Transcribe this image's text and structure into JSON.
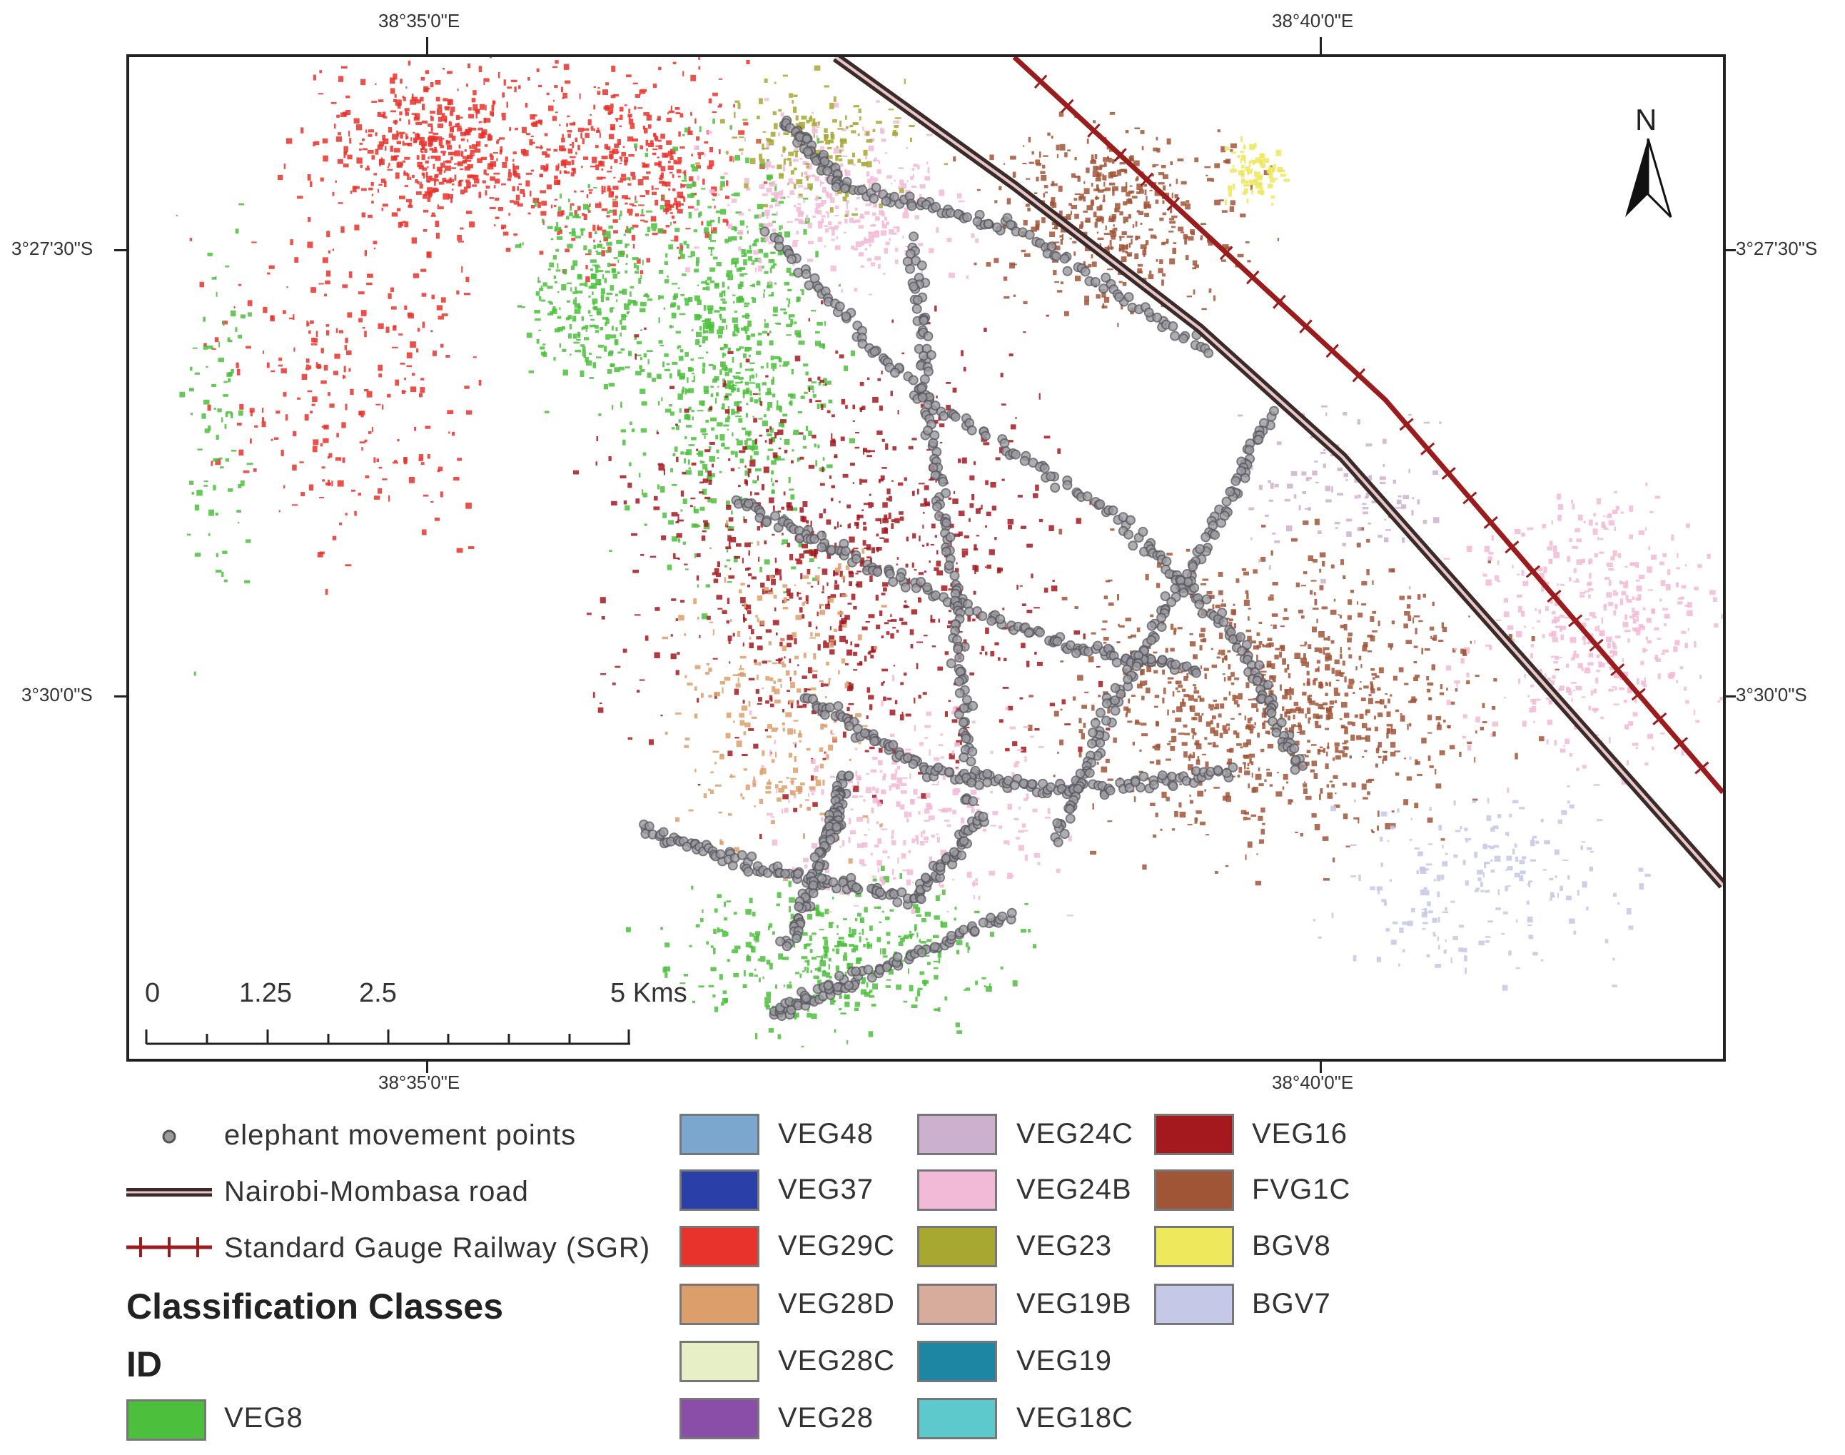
{
  "map": {
    "graticule": {
      "top": [
        "38°35'0\"E",
        "38°40'0\"E"
      ],
      "bottom": [
        "38°35'0\"E",
        "38°40'0\"E"
      ],
      "left": [
        "3°27'30\"S",
        "3°30'0\"S"
      ],
      "right": [
        "3°27'30\"S",
        "3°30'0\"S"
      ]
    },
    "north_arrow": {
      "label": "N",
      "icon": "north-arrow-icon"
    },
    "scale_bar": {
      "labels": [
        "0",
        "1.25",
        "2.5",
        "5 Kms"
      ]
    },
    "colors": {
      "road": "#3a2a2a",
      "railway": "#9b1c1c",
      "points": "#7f7f86"
    }
  },
  "legend": {
    "features": [
      {
        "label": "elephant movement points",
        "icon": "point-symbol-icon"
      },
      {
        "label": "Nairobi-Mombasa road",
        "icon": "road-symbol-icon"
      },
      {
        "label": "Standard Gauge Railway (SGR)",
        "icon": "railway-symbol-icon"
      }
    ],
    "heading": "Classification Classes",
    "subheading": "ID",
    "classes": [
      {
        "label": "VEG8",
        "color": "#4cbf3c"
      },
      {
        "label": "VEG48",
        "color": "#7ba7cf"
      },
      {
        "label": "VEG37",
        "color": "#2b3fa8"
      },
      {
        "label": "VEG29C",
        "color": "#e8322c"
      },
      {
        "label": "VEG28D",
        "color": "#dc9f6b"
      },
      {
        "label": "VEG28C",
        "color": "#e7efc6"
      },
      {
        "label": "VEG28",
        "color": "#8a4ea8"
      },
      {
        "label": "VEG24C",
        "color": "#cdb0ce"
      },
      {
        "label": "VEG24B",
        "color": "#f2bad6"
      },
      {
        "label": "VEG23",
        "color": "#a6a832"
      },
      {
        "label": "VEG19B",
        "color": "#d7ac9c"
      },
      {
        "label": "VEG19",
        "color": "#1d86a2"
      },
      {
        "label": "VEG18C",
        "color": "#5dc9cc"
      },
      {
        "label": "VEG16",
        "color": "#a3191e"
      },
      {
        "label": "FVG1C",
        "color": "#a15537"
      },
      {
        "label": "BGV8",
        "color": "#ede85c"
      },
      {
        "label": "BGV7",
        "color": "#c5c8e6"
      }
    ]
  }
}
